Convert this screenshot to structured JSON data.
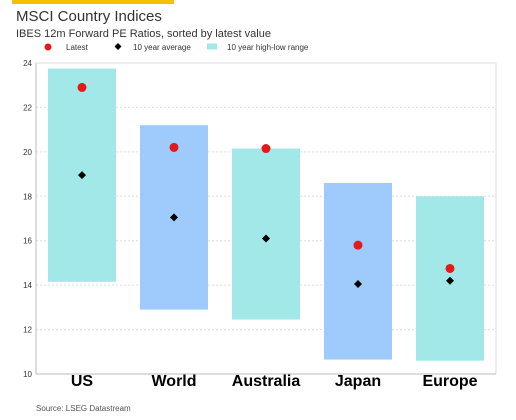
{
  "header": {
    "title": "MSCI Country Indices",
    "subtitle": "IBES 12m Forward PE Ratios, sorted by latest value"
  },
  "source": "Source: LSEG Datastream",
  "colors": {
    "accent": "#f5c000",
    "range_a": "#a3e8e8",
    "range_b": "#9ecbfb",
    "latest": "#e31a1c",
    "average": "#000000",
    "grid": "#dddddd"
  },
  "chart_data": {
    "type": "range-bar",
    "title": "MSCI Country Indices",
    "subtitle": "IBES 12m Forward PE Ratios, sorted by latest value",
    "categories": [
      "US",
      "World",
      "Australia",
      "Japan",
      "Europe"
    ],
    "legend": {
      "position": "top",
      "entries": [
        "Latest",
        "10 year average",
        "10 year high-low range"
      ]
    },
    "series": [
      {
        "name": "Latest",
        "marker": "circle",
        "values": [
          22.9,
          20.2,
          20.15,
          15.8,
          14.75
        ]
      },
      {
        "name": "10 year average",
        "marker": "diamond",
        "values": [
          18.95,
          17.05,
          16.1,
          14.05,
          14.2
        ]
      },
      {
        "name": "10 year high-low range",
        "low": [
          14.15,
          12.9,
          12.45,
          10.65,
          10.6
        ],
        "high": [
          23.75,
          21.2,
          20.15,
          18.6,
          18.0
        ]
      }
    ],
    "y_ticks": [
      "10",
      "12",
      "14",
      "16",
      "18",
      "20",
      "22",
      "24"
    ],
    "ylim": [
      10,
      24
    ],
    "grid": true
  }
}
